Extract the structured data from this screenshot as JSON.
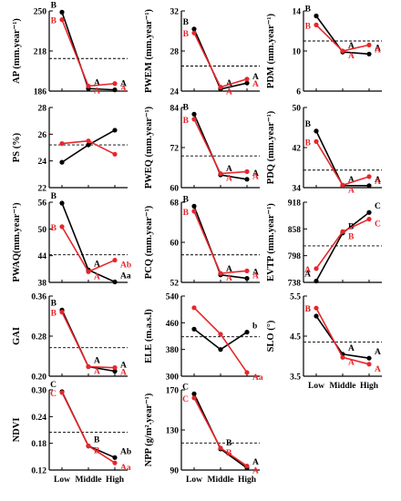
{
  "colors": {
    "black": "#000000",
    "red": "#e8262b"
  },
  "categories": [
    "Low",
    "Middle",
    "High"
  ],
  "chart_data": [
    {
      "type": "line",
      "ylabel": "AP (mm.year⁻¹)",
      "ylim": [
        186,
        250
      ],
      "yticks": [
        186,
        218,
        250
      ],
      "ref": 212,
      "series": [
        {
          "values": [
            249,
            188,
            187
          ],
          "labels": [
            "B",
            "A",
            "A"
          ]
        },
        {
          "values": [
            243,
            190,
            192
          ],
          "labels": [
            "B",
            "A",
            "A"
          ]
        }
      ]
    },
    {
      "type": "line",
      "ylabel": "PWEM (mm.year⁻¹)",
      "ylim": [
        24,
        32
      ],
      "yticks": [
        24,
        28,
        32
      ],
      "ref": 26.5,
      "series": [
        {
          "values": [
            30.2,
            24.2,
            24.8
          ],
          "labels": [
            "B",
            "A",
            "A"
          ]
        },
        {
          "values": [
            29.8,
            24.4,
            25.2
          ],
          "labels": [
            "B",
            "A",
            "A"
          ]
        }
      ]
    },
    {
      "type": "line",
      "ylabel": "PDM (mm.year⁻¹)",
      "ylim": [
        6,
        14
      ],
      "yticks": [
        6,
        10,
        14
      ],
      "ref": 11,
      "series": [
        {
          "values": [
            13.5,
            9.9,
            9.7
          ],
          "labels": [
            "B",
            "A",
            "A"
          ]
        },
        {
          "values": [
            12.6,
            10.0,
            10.6
          ],
          "labels": [
            "B",
            "A",
            "A"
          ]
        }
      ]
    },
    {
      "type": "line",
      "ylabel": "PS (%)",
      "ylim": [
        22,
        28
      ],
      "yticks": [
        22,
        24,
        26,
        28
      ],
      "ref": 25.2,
      "series": [
        {
          "values": [
            23.9,
            25.2,
            26.3
          ],
          "labels": []
        },
        {
          "values": [
            25.3,
            25.5,
            24.5
          ],
          "labels": []
        }
      ]
    },
    {
      "type": "line",
      "ylabel": "PWEQ (mm.year⁻¹)",
      "ylim": [
        60,
        84
      ],
      "yticks": [
        60,
        72,
        84
      ],
      "ref": 69.5,
      "series": [
        {
          "values": [
            82,
            63.8,
            62.5
          ],
          "labels": [
            "B",
            "A",
            "A"
          ]
        },
        {
          "values": [
            80.5,
            64.2,
            64.8
          ],
          "labels": [
            "B",
            "A",
            "A"
          ]
        }
      ]
    },
    {
      "type": "line",
      "ylabel": "PDQ (mm.year⁻¹)",
      "ylim": [
        34,
        50
      ],
      "yticks": [
        34,
        42,
        50
      ],
      "ref": 37.5,
      "series": [
        {
          "values": [
            45.3,
            34.4,
            34.4
          ],
          "labels": [
            "B",
            "A",
            "A"
          ]
        },
        {
          "values": [
            43.2,
            34.5,
            36.2
          ],
          "labels": [
            "B",
            "A",
            "A"
          ]
        }
      ]
    },
    {
      "type": "line",
      "ylabel": "PWAQ(mm.year⁻¹)",
      "ylim": [
        38,
        56
      ],
      "yticks": [
        38,
        44,
        50,
        56
      ],
      "ref": 44.2,
      "series": [
        {
          "values": [
            55.8,
            40.8,
            38.1
          ],
          "labels": [
            "B",
            "A",
            "Aa"
          ]
        },
        {
          "values": [
            50.5,
            40.4,
            43.0
          ],
          "labels": [
            "B",
            "A",
            "Ab"
          ]
        }
      ]
    },
    {
      "type": "line",
      "ylabel": "PCQ (mm.year⁻¹)",
      "ylim": [
        52,
        68
      ],
      "yticks": [
        52,
        60,
        68
      ],
      "ref": 57.5,
      "series": [
        {
          "values": [
            67.2,
            53.5,
            52.8
          ],
          "labels": [
            "B",
            "A",
            "A"
          ]
        },
        {
          "values": [
            66.2,
            53.8,
            54.3
          ],
          "labels": [
            "B",
            "A",
            "A"
          ]
        }
      ]
    },
    {
      "type": "line",
      "ylabel": "EVTP (mm.year⁻¹)",
      "ylim": [
        738,
        918
      ],
      "yticks": [
        738,
        798,
        858,
        918
      ],
      "ref": 820,
      "series": [
        {
          "values": [
            741,
            849,
            895
          ],
          "labels": [
            "A",
            "B",
            "C"
          ]
        },
        {
          "values": [
            769,
            852,
            880
          ],
          "labels": [
            "A",
            "B",
            "C"
          ]
        }
      ]
    },
    {
      "type": "line",
      "ylabel": "GAI",
      "ylim": [
        0.2,
        0.36
      ],
      "yticks": [
        0.2,
        0.28,
        0.36
      ],
      "yticklabels": [
        "0.20",
        "0.28",
        "0.36"
      ],
      "ref": 0.257,
      "series": [
        {
          "values": [
            0.332,
            0.219,
            0.21
          ],
          "labels": [
            "B",
            "A",
            "A"
          ]
        },
        {
          "values": [
            0.328,
            0.219,
            0.217
          ],
          "labels": [
            "B",
            "A",
            "A"
          ]
        }
      ]
    },
    {
      "type": "line",
      "ylabel": "ELE (m.a.s.l)",
      "ylim": [
        300,
        540
      ],
      "yticks": [
        300,
        380,
        460,
        540
      ],
      "ref": 418,
      "series": [
        {
          "values": [
            441,
            380,
            432
          ],
          "labels": [
            "",
            "",
            "b"
          ]
        },
        {
          "values": [
            505,
            426,
            311
          ],
          "labels": [
            "",
            "",
            "Aa"
          ]
        }
      ]
    },
    {
      "type": "line",
      "ylabel": "SLO (°)",
      "ylim": [
        3.5,
        5.5
      ],
      "yticks": [
        3.5,
        4.5,
        5.5
      ],
      "yticklabels": [
        "3.5",
        "4.5",
        "5.5"
      ],
      "ref": 4.35,
      "series": [
        {
          "values": [
            5.0,
            4.05,
            3.95
          ],
          "labels": [
            "B",
            "A",
            "A"
          ]
        },
        {
          "values": [
            5.2,
            3.97,
            3.8
          ],
          "labels": [
            "B",
            "A",
            "A"
          ]
        }
      ]
    },
    {
      "type": "line",
      "ylabel": "NDVI",
      "ylim": [
        0.12,
        0.3
      ],
      "yticks": [
        0.12,
        0.18,
        0.24,
        0.3
      ],
      "yticklabels": [
        "0.12",
        "0.18",
        "0.24",
        "0.30"
      ],
      "ref": 0.205,
      "series": [
        {
          "values": [
            0.296,
            0.174,
            0.148
          ],
          "labels": [
            "C",
            "B",
            "Ab"
          ]
        },
        {
          "values": [
            0.294,
            0.174,
            0.136
          ],
          "labels": [
            "C",
            "B",
            "Aa"
          ]
        }
      ]
    },
    {
      "type": "line",
      "ylabel": "NPP (g/m².year⁻¹)",
      "ylim": [
        90,
        170
      ],
      "yticks": [
        90,
        130,
        170
      ],
      "ref": 117,
      "series": [
        {
          "values": [
            166,
            111,
            92
          ],
          "labels": [
            "C",
            "B",
            "A"
          ]
        },
        {
          "values": [
            162,
            112,
            94
          ],
          "labels": [
            "C",
            "B",
            "A"
          ]
        }
      ]
    }
  ]
}
